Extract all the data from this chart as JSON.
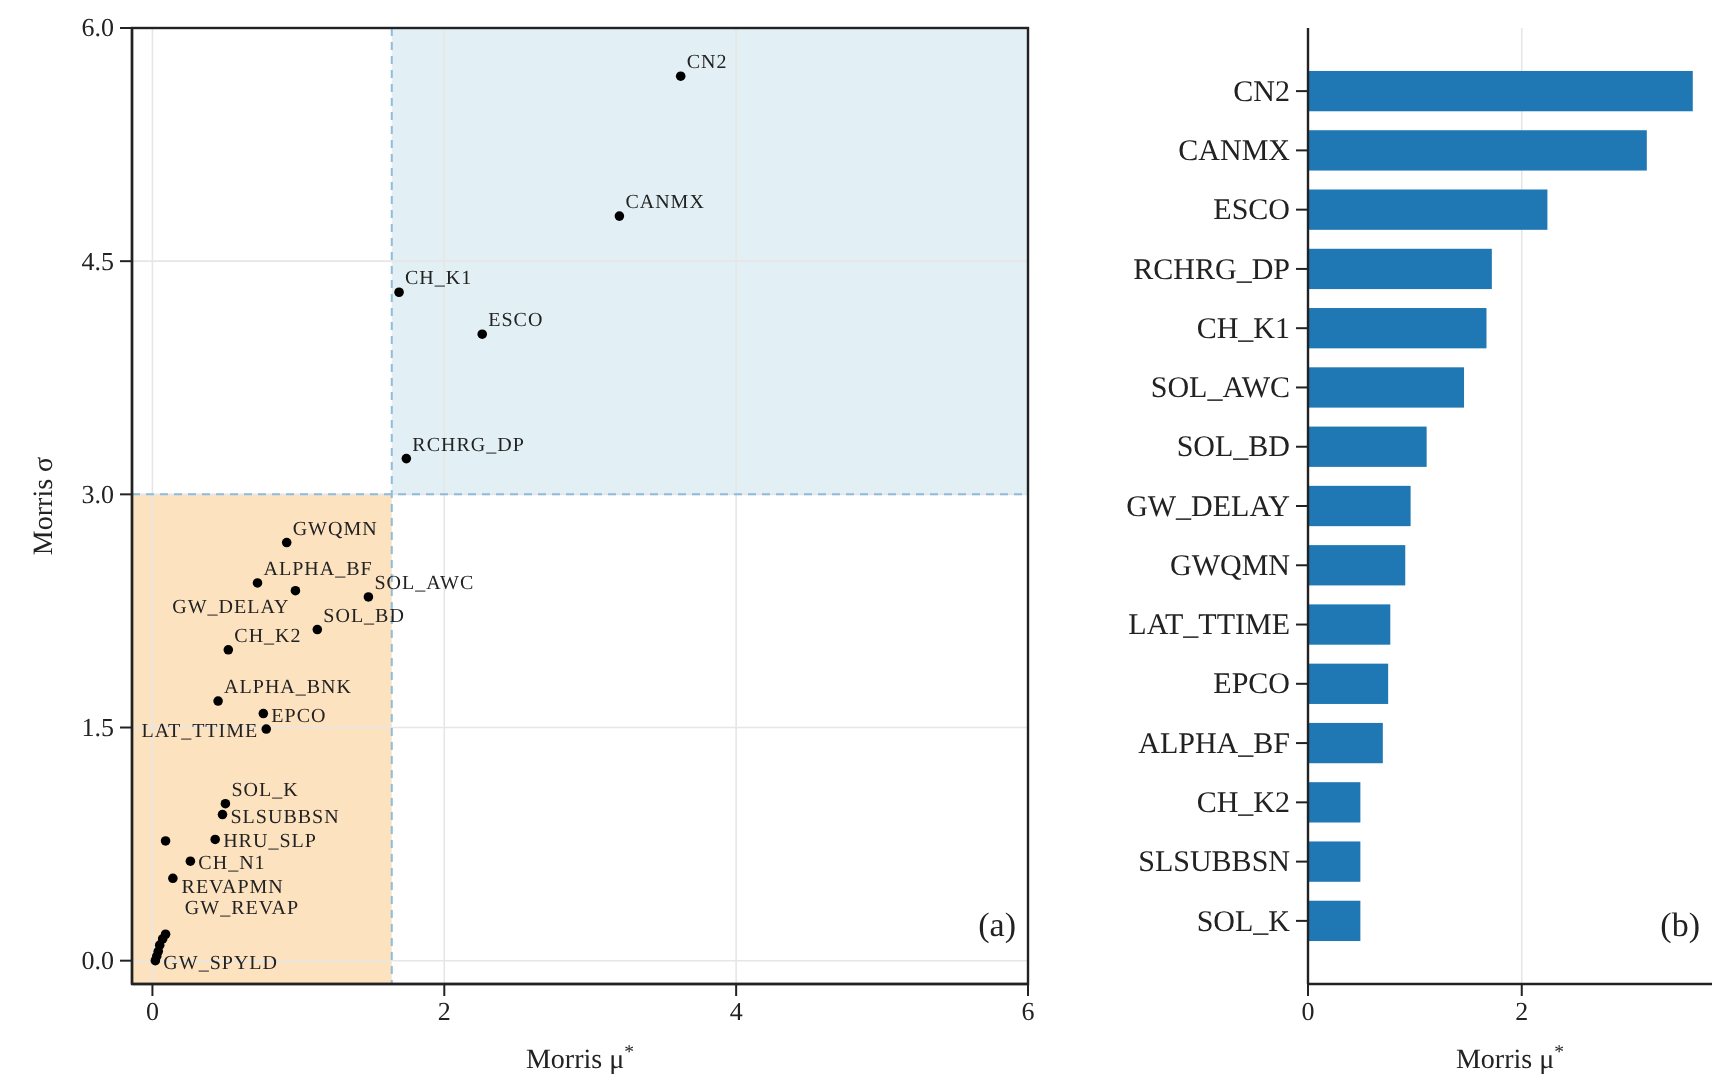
{
  "chart_data": [
    {
      "type": "scatter",
      "xlabel": "Morris μ$^{*}$",
      "ylabel": "Morris σ",
      "xlim": [
        -0.14,
        6
      ],
      "ylim": [
        -0.15,
        6
      ],
      "xticks": [
        0,
        2,
        4,
        6
      ],
      "yticks": [
        {
          "value": 0,
          "label": "0.0"
        },
        {
          "value": 1.5,
          "label": "1.5"
        },
        {
          "value": 3,
          "label": "3.0"
        },
        {
          "value": 4.5,
          "label": "4.5"
        },
        {
          "value": 6,
          "label": "6.0"
        }
      ],
      "grid": true,
      "marker": "circle",
      "bands": [
        {
          "axis": "x",
          "from": -0.14,
          "to": 1.64,
          "color": "#fde2c0"
        },
        {
          "axis": "x",
          "from": 1.64,
          "to": 6,
          "color": "#e2f0f6"
        }
      ],
      "ref_lines": [
        {
          "axis": "x",
          "value": 1.64,
          "color": "#8fbcd9",
          "line_style": "dashed"
        },
        {
          "axis": "y",
          "value": 3,
          "color": "#8fbcd9",
          "line_style": "dashed"
        }
      ],
      "series": [
        {
          "color": "#000000",
          "x": [
            3.62,
            3.2,
            1.69,
            2.26,
            1.74,
            0.92,
            0.72,
            0.98,
            1.48,
            1.13,
            0.52,
            0.45,
            0.76,
            0.78,
            0.5,
            0.48,
            0.09,
            0.43,
            0.26,
            0.14,
            0.09,
            0.07,
            0.05,
            0.04,
            0.03,
            0.02
          ],
          "values": [
            5.69,
            4.79,
            4.3,
            4.03,
            3.23,
            2.69,
            2.43,
            2.38,
            2.34,
            2.13,
            2.0,
            1.67,
            1.59,
            1.49,
            1.01,
            0.94,
            0.77,
            0.78,
            0.64,
            0.53,
            0.17,
            0.14,
            0.1,
            0.06,
            0.03,
            0.0
          ]
        }
      ],
      "annotations": [
        {
          "text": "CN2",
          "x": 3.62,
          "y": 5.69
        },
        {
          "text": "CANMX",
          "x": 3.2,
          "y": 4.79
        },
        {
          "text": "CH_K1",
          "x": 1.69,
          "y": 4.3
        },
        {
          "text": "ESCO",
          "x": 2.26,
          "y": 4.03
        },
        {
          "text": "RCHRG_DP",
          "x": 1.74,
          "y": 3.23
        },
        {
          "text": "GWQMN",
          "x": 0.92,
          "y": 2.69
        },
        {
          "text": "ALPHA_BF",
          "x": 0.72,
          "y": 2.43
        },
        {
          "text": "GW_DELAY",
          "x": 0.98,
          "y": 2.38
        },
        {
          "text": "SOL_AWC",
          "x": 1.48,
          "y": 2.34
        },
        {
          "text": "SOL_BD",
          "x": 1.13,
          "y": 2.13
        },
        {
          "text": "CH_K2",
          "x": 0.52,
          "y": 2.0
        },
        {
          "text": "ALPHA_BNK",
          "x": 0.45,
          "y": 1.67
        },
        {
          "text": "EPCO",
          "x": 0.76,
          "y": 1.59
        },
        {
          "text": "LAT_TTIME",
          "x": 0.78,
          "y": 1.49
        },
        {
          "text": "SOL_K",
          "x": 0.5,
          "y": 1.01
        },
        {
          "text": "SLSUBBSN",
          "x": 0.48,
          "y": 0.94
        },
        {
          "text": "REVAPMN",
          "x": 0.09,
          "y": 0.77
        },
        {
          "text": "HRU_SLP",
          "x": 0.43,
          "y": 0.78
        },
        {
          "text": "CH_N1",
          "x": 0.26,
          "y": 0.64
        },
        {
          "text": "GW_REVAP",
          "x": 0.14,
          "y": 0.53
        },
        {
          "text": "GW_SPYLD",
          "x": 0.02,
          "y": 0.0
        },
        "(a)"
      ]
    },
    {
      "type": "bar",
      "orientation": "horizontal",
      "xlabel": "Morris μ$^{*}$",
      "categories": [
        "CN2",
        "CANMX",
        "ESCO",
        "RCHRG_DP",
        "CH_K1",
        "SOL_AWC",
        "SOL_BD",
        "GW_DELAY",
        "GWQMN",
        "LAT_TTIME",
        "EPCO",
        "ALPHA_BF",
        "CH_K2",
        "SLSUBBSN",
        "SOL_K"
      ],
      "values": [
        3.6,
        3.17,
        2.24,
        1.72,
        1.67,
        1.46,
        1.11,
        0.96,
        0.91,
        0.77,
        0.75,
        0.7,
        0.49,
        0.49,
        0.49
      ],
      "color": "#1f77b4",
      "xlim": [
        0,
        3.78
      ],
      "xticks": [
        0,
        2
      ],
      "grid": "x",
      "annotations": [
        "(b)"
      ]
    }
  ]
}
